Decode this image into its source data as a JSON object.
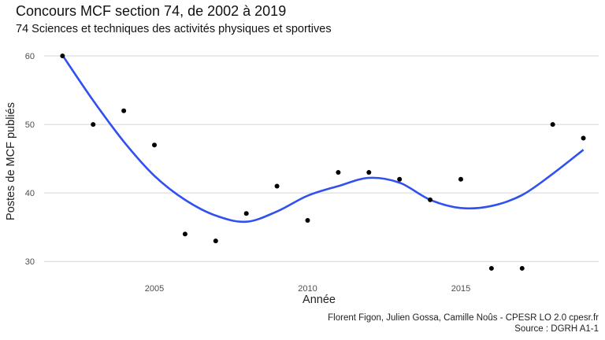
{
  "chart_data": {
    "type": "scatter",
    "title": "Concours MCF section 74, de 2002 à 2019",
    "subtitle": "74 Sciences et techniques des activités physiques et sportives",
    "xlabel": "Année",
    "ylabel": "Postes de MCF publiés",
    "caption_line1": "Florent Figon, Julien Gossa, Camille Noûs - CPESR LO 2.0 cpesr.fr",
    "caption_line2": "Source : DGRH A1-1",
    "xlim": [
      2001.4,
      2019.5
    ],
    "ylim": [
      27.5,
      61.5
    ],
    "x_ticks": [
      2005,
      2010,
      2015
    ],
    "y_ticks": [
      30,
      40,
      50,
      60
    ],
    "grid": "horizontal",
    "point_color": "#000000",
    "smooth_color": "#3050f0",
    "points": [
      {
        "x": 2002,
        "y": 60
      },
      {
        "x": 2003,
        "y": 50
      },
      {
        "x": 2004,
        "y": 52
      },
      {
        "x": 2005,
        "y": 47
      },
      {
        "x": 2006,
        "y": 34
      },
      {
        "x": 2007,
        "y": 33
      },
      {
        "x": 2008,
        "y": 37
      },
      {
        "x": 2009,
        "y": 41
      },
      {
        "x": 2010,
        "y": 36
      },
      {
        "x": 2011,
        "y": 43
      },
      {
        "x": 2012,
        "y": 43
      },
      {
        "x": 2013,
        "y": 42
      },
      {
        "x": 2014,
        "y": 39
      },
      {
        "x": 2015,
        "y": 42
      },
      {
        "x": 2016,
        "y": 29
      },
      {
        "x": 2017,
        "y": 29
      },
      {
        "x": 2018,
        "y": 50
      },
      {
        "x": 2019,
        "y": 48
      }
    ],
    "smooth": [
      {
        "x": 2002,
        "y": 60.1
      },
      {
        "x": 2003,
        "y": 53.5
      },
      {
        "x": 2004,
        "y": 47.5
      },
      {
        "x": 2005,
        "y": 42.5
      },
      {
        "x": 2006,
        "y": 39.0
      },
      {
        "x": 2007,
        "y": 36.7
      },
      {
        "x": 2008,
        "y": 35.8
      },
      {
        "x": 2009,
        "y": 37.3
      },
      {
        "x": 2010,
        "y": 39.6
      },
      {
        "x": 2011,
        "y": 41.0
      },
      {
        "x": 2012,
        "y": 42.2
      },
      {
        "x": 2013,
        "y": 41.5
      },
      {
        "x": 2014,
        "y": 39.0
      },
      {
        "x": 2015,
        "y": 37.8
      },
      {
        "x": 2016,
        "y": 38.1
      },
      {
        "x": 2017,
        "y": 39.7
      },
      {
        "x": 2018,
        "y": 42.8
      },
      {
        "x": 2019,
        "y": 46.3
      }
    ]
  }
}
